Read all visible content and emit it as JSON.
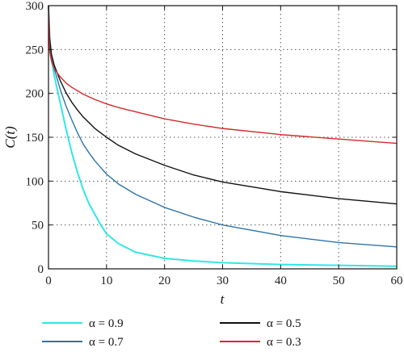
{
  "chart_data": {
    "type": "line",
    "xlabel": "t",
    "ylabel": "C(t)",
    "xlim": [
      0,
      60
    ],
    "ylim": [
      0,
      300
    ],
    "xticks": [
      0,
      10,
      20,
      30,
      40,
      50,
      60
    ],
    "yticks": [
      0,
      50,
      100,
      150,
      200,
      250,
      300
    ],
    "grid": true,
    "legend_position": "bottom",
    "series": [
      {
        "name": "α = 0.9",
        "color": "#33e6e6",
        "x": [
          0,
          0.2,
          0.5,
          1,
          2,
          3,
          4,
          5,
          6,
          7,
          8,
          9,
          10,
          12,
          15,
          20,
          25,
          30,
          40,
          50,
          60
        ],
        "y": [
          300,
          265,
          240,
          220,
          190,
          160,
          133,
          110,
          90,
          74,
          62,
          50,
          40,
          29,
          19,
          12,
          9,
          7,
          5,
          4,
          3
        ]
      },
      {
        "name": "α = 0.7",
        "color": "#2f74a8",
        "x": [
          0,
          0.2,
          0.5,
          1,
          2,
          3,
          4,
          5,
          6,
          7,
          8,
          10,
          12,
          15,
          20,
          25,
          30,
          40,
          50,
          60
        ],
        "y": [
          300,
          265,
          244,
          228,
          205,
          186,
          170,
          155,
          142,
          132,
          123,
          108,
          97,
          85,
          70,
          59,
          50,
          38,
          30,
          25
        ]
      },
      {
        "name": "α = 0.5",
        "color": "#111111",
        "x": [
          0,
          0.2,
          0.5,
          1,
          2,
          3,
          4,
          5,
          6,
          8,
          10,
          12,
          15,
          20,
          25,
          30,
          40,
          50,
          60
        ],
        "y": [
          300,
          262,
          245,
          232,
          215,
          201,
          190,
          181,
          173,
          160,
          150,
          141,
          131,
          118,
          107,
          99,
          88,
          80,
          74
        ]
      },
      {
        "name": "α = 0.3",
        "color": "#d62a2a",
        "x": [
          0,
          0.2,
          0.5,
          1,
          2,
          3,
          4,
          5,
          6,
          8,
          10,
          12,
          15,
          20,
          25,
          30,
          40,
          50,
          60
        ],
        "y": [
          300,
          248,
          237,
          228,
          219,
          212,
          207,
          203,
          199,
          193,
          188,
          184,
          179,
          171,
          165,
          160,
          153,
          148,
          143
        ]
      }
    ],
    "legend": [
      {
        "label": "α = 0.9",
        "series": 0
      },
      {
        "label": "α = 0.5",
        "series": 2
      },
      {
        "label": "α = 0.7",
        "series": 1
      },
      {
        "label": "α = 0.3",
        "series": 3
      }
    ]
  }
}
